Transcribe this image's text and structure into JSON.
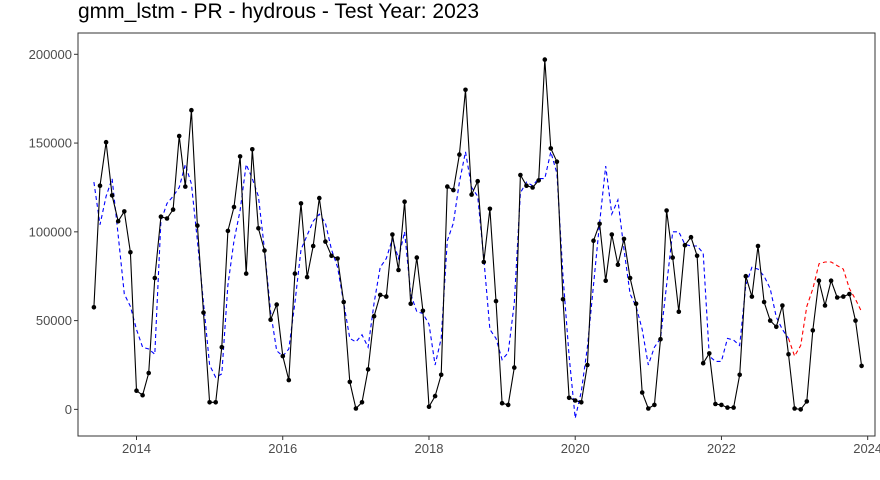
{
  "chart_data": {
    "type": "line",
    "title": "gmm_lstm - PR - hydrous - Test Year: 2023",
    "xlabel": "",
    "ylabel": "",
    "xlim": [
      2013.2,
      2024.1
    ],
    "ylim": [
      -15000,
      212000
    ],
    "x_ticks": [
      2014,
      2016,
      2018,
      2020,
      2022,
      2024
    ],
    "x_tick_labels": [
      "2014",
      "2016",
      "2018",
      "2020",
      "2022",
      "2024"
    ],
    "y_ticks": [
      0,
      50000,
      100000,
      150000,
      200000
    ],
    "y_tick_labels": [
      "0",
      "50000",
      "100000",
      "150000",
      "200000"
    ],
    "grid": false,
    "legend": "none",
    "x_start": 2013.417,
    "x_step": 0.08333,
    "series": [
      {
        "role": "actual",
        "style": "solid line with point markers",
        "color": "#000000",
        "values": [
          57500,
          126000,
          150500,
          120500,
          106000,
          111500,
          88500,
          10500,
          8000,
          20500,
          74000,
          108500,
          107500,
          112500,
          154000,
          125500,
          168500,
          103500,
          54500,
          4000,
          4000,
          35000,
          100500,
          114000,
          142500,
          76500,
          146500,
          102000,
          89500,
          50500,
          59000,
          30000,
          16500,
          76500,
          116000,
          74500,
          92000,
          119000,
          94500,
          86500,
          85000,
          60500,
          15500,
          500,
          4000,
          22500,
          52500,
          64500,
          63500,
          98500,
          78500,
          117000,
          59500,
          85500,
          55500,
          1500,
          7500,
          19500,
          125500,
          123500,
          143500,
          180000,
          121000,
          128500,
          83000,
          113000,
          61000,
          3500,
          2500,
          23500,
          132000,
          126000,
          125000,
          129000,
          197000,
          147000,
          139500,
          62000,
          6500,
          5000,
          4000,
          25000,
          95000,
          104500,
          72500,
          98500,
          81500,
          96000,
          74000,
          59500,
          9500,
          500,
          2500,
          39500,
          112000,
          85500,
          55000,
          92500,
          97000,
          86500,
          26000,
          31500,
          3000,
          2500,
          1000,
          1000,
          19500,
          75000,
          63500,
          92000,
          60500,
          50000,
          46500,
          58500,
          31000,
          500,
          0,
          4500,
          44500,
          72500,
          58500,
          72500,
          63000,
          63500,
          65000,
          50000,
          24500
        ]
      },
      {
        "role": "fitted",
        "style": "dashed line",
        "color": "#0000ff",
        "values": [
          128000,
          104000,
          120000,
          130000,
          98000,
          65000,
          58000,
          45000,
          35000,
          34000,
          31000,
          106000,
          116000,
          120000,
          125000,
          138000,
          127000,
          95000,
          60000,
          25000,
          18000,
          20000,
          70000,
          95000,
          112000,
          138000,
          130000,
          120000,
          90000,
          55000,
          33000,
          30000,
          34000,
          60000,
          90000,
          98000,
          106000,
          110000,
          105000,
          90000,
          80000,
          60000,
          40000,
          38000,
          42000,
          35000,
          60000,
          80000,
          85000,
          96000,
          85000,
          100000,
          65000,
          55000,
          54000,
          48000,
          25000,
          40000,
          95000,
          105000,
          128000,
          145000,
          125000,
          120000,
          85000,
          45000,
          40000,
          28000,
          32000,
          60000,
          122000,
          128000,
          126000,
          130000,
          130000,
          145000,
          133000,
          75000,
          30000,
          -5000,
          10000,
          35000,
          70000,
          105000,
          137000,
          110000,
          118000,
          90000,
          65000,
          58000,
          45000,
          25000,
          35000,
          40000,
          70000,
          100000,
          100000,
          93000,
          92000,
          92000,
          88000,
          30000,
          27000,
          27000,
          40000,
          39000,
          36000,
          70000,
          80000,
          79000,
          75000,
          68000,
          52000,
          45000,
          40000
        ]
      },
      {
        "role": "forecast",
        "style": "dashed line",
        "color": "#ff0000",
        "x_start": 2022.917,
        "values": [
          40000,
          30000,
          36000,
          58000,
          68000,
          82000,
          83000,
          83000,
          81000,
          79000,
          68000,
          62000,
          55000
        ]
      }
    ]
  }
}
